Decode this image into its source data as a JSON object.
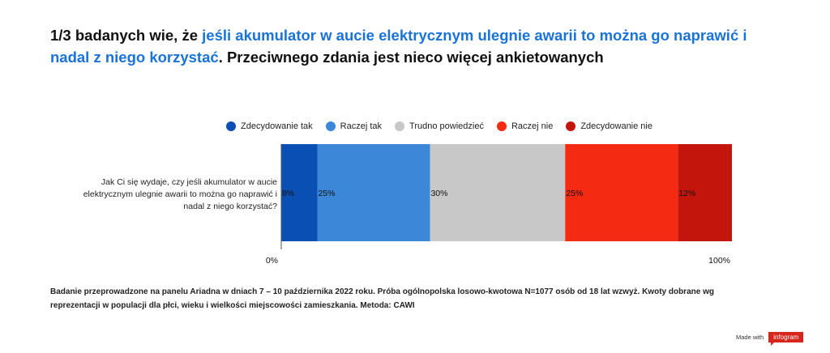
{
  "title": {
    "part1": "1/3 badanych wie, że ",
    "highlight": "jeśli akumulator w aucie elektrycznym ulegnie awarii to można go naprawić i nadal z niego korzystać",
    "part2": ". Przeciwnego zdania jest nieco więcej ankietowanych"
  },
  "footnote": "Badanie przeprowadzone na panelu Ariadna w dniach 7 – 10 października 2022 roku. Próba ogólnopolska losowo-kwotowa N=1077 osób od 18 lat wzwyż. Kwoty dobrane wg reprezentacji w populacji dla płci, wieku i wielkości miejscowości zamieszkania. Metoda: CAWI",
  "branding": {
    "made_with": "Made with",
    "logo": "infogram"
  },
  "chart_data": {
    "type": "bar",
    "orientation": "horizontal",
    "stacked": true,
    "normalized": true,
    "categories": [
      "Jak Ci się wydaje, czy jeśli akumulator w aucie elektrycznym ulegnie awarii to można go naprawić i nadal z niego korzystać?"
    ],
    "series": [
      {
        "name": "Zdecydowanie tak",
        "values": [
          8
        ],
        "label": "8%",
        "color": "#0a4fb4"
      },
      {
        "name": "Raczej tak",
        "values": [
          25
        ],
        "label": "25%",
        "color": "#3d87d8"
      },
      {
        "name": "Trudno powiedzieć",
        "values": [
          30
        ],
        "label": "30%",
        "color": "#c8c8c8"
      },
      {
        "name": "Raczej nie",
        "values": [
          25
        ],
        "label": "25%",
        "color": "#f42a12"
      },
      {
        "name": "Zdecydowanie nie",
        "values": [
          12
        ],
        "label": "12%",
        "color": "#c4150c"
      }
    ],
    "xlim": [
      0,
      100
    ],
    "x_tick_labels": [
      "0%",
      "100%"
    ],
    "legend": "top-center",
    "grid": false
  }
}
